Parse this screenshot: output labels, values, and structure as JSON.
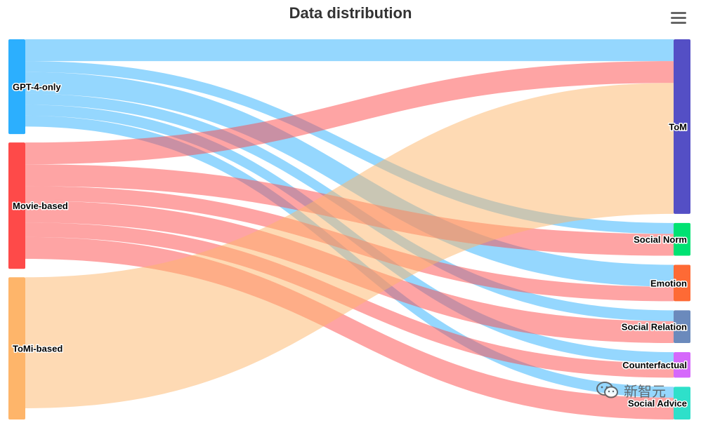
{
  "chart_data": {
    "type": "sankey",
    "title": "Data distribution",
    "sources": [
      {
        "name": "GPT-4-only",
        "color": "#2caffe"
      },
      {
        "name": "Movie-based",
        "color": "#fe4a49"
      },
      {
        "name": "ToMi-based",
        "color": "#feb56a"
      }
    ],
    "targets": [
      {
        "name": "ToM",
        "color": "#544fc5"
      },
      {
        "name": "Social Norm",
        "color": "#00e272"
      },
      {
        "name": "Emotion",
        "color": "#fe6a35"
      },
      {
        "name": "Social Relation",
        "color": "#6b8abc"
      },
      {
        "name": "Counterfactual",
        "color": "#d568fb"
      },
      {
        "name": "Social Advice",
        "color": "#2ee0ca"
      }
    ],
    "links": [
      {
        "from": "GPT-4-only",
        "to": "ToM",
        "value": 30
      },
      {
        "from": "GPT-4-only",
        "to": "Social Norm",
        "value": 15
      },
      {
        "from": "GPT-4-only",
        "to": "Emotion",
        "value": 30
      },
      {
        "from": "GPT-4-only",
        "to": "Social Relation",
        "value": 15
      },
      {
        "from": "GPT-4-only",
        "to": "Counterfactual",
        "value": 15
      },
      {
        "from": "GPT-4-only",
        "to": "Social Advice",
        "value": 15
      },
      {
        "from": "Movie-based",
        "to": "ToM",
        "value": 30
      },
      {
        "from": "Movie-based",
        "to": "Social Norm",
        "value": 30
      },
      {
        "from": "Movie-based",
        "to": "Emotion",
        "value": 20
      },
      {
        "from": "Movie-based",
        "to": "Social Relation",
        "value": 30
      },
      {
        "from": "Movie-based",
        "to": "Counterfactual",
        "value": 20
      },
      {
        "from": "Movie-based",
        "to": "Social Advice",
        "value": 30
      },
      {
        "from": "ToMi-based",
        "to": "ToM",
        "value": 180
      }
    ]
  },
  "menu": {
    "icon": "hamburger-menu-icon"
  },
  "watermark": {
    "text": "新智元",
    "icon": "wechat-icon"
  }
}
